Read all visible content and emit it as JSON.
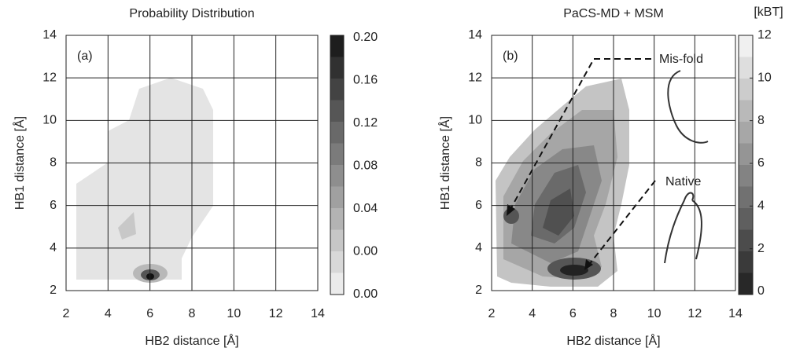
{
  "chart_data": [
    {
      "type": "contour",
      "title": "Probability Distribution",
      "panel_label": "(a)",
      "x_label": "HB2 distance [Å]",
      "y_label": "HB1 distance [Å]",
      "xlim": [
        2,
        14
      ],
      "ylim": [
        2,
        14
      ],
      "xticks": [
        2,
        4,
        6,
        8,
        10,
        12,
        14
      ],
      "yticks": [
        2,
        4,
        6,
        8,
        10,
        12,
        14
      ],
      "grid": true,
      "colorbar_labels": [
        "0.20",
        "0.16",
        "0.12",
        "0.08",
        "0.04",
        "0.00",
        "0.00"
      ]
    },
    {
      "type": "contour",
      "title": "PaCS-MD + MSM",
      "panel_label": "(b)",
      "x_label": "HB2 distance [Å]",
      "y_label": "HB1 distance [Å]",
      "xlim": [
        2,
        14
      ],
      "ylim": [
        2,
        14
      ],
      "xticks": [
        2,
        4,
        6,
        8,
        10,
        12,
        14
      ],
      "yticks": [
        2,
        4,
        6,
        8,
        10,
        12,
        14
      ],
      "grid": true,
      "colorbar_title": "[kBT]",
      "clim": [
        0,
        12
      ],
      "colorbar_ticks": [
        12,
        10,
        8,
        6,
        4,
        2,
        0
      ],
      "annotations": [
        "Mis-fold",
        "Native"
      ]
    }
  ]
}
